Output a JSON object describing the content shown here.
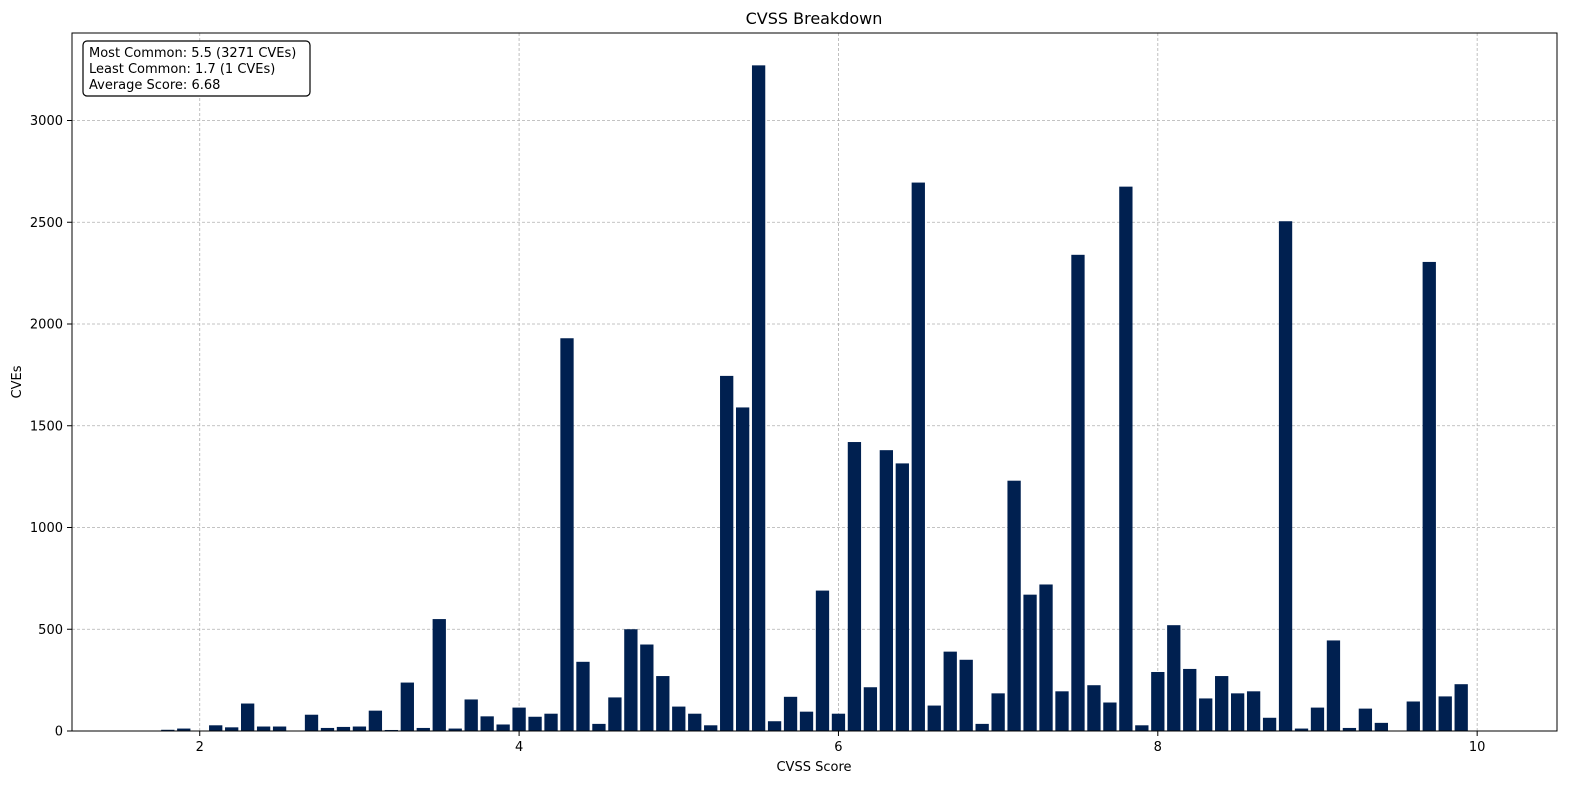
{
  "chart_data": {
    "type": "bar",
    "title": "CVSS Breakdown",
    "xlabel": "CVSS Score",
    "ylabel": "CVEs",
    "xlim": [
      1.2,
      10.5
    ],
    "ylim": [
      0,
      3430
    ],
    "x_ticks": [
      2,
      4,
      6,
      8,
      10
    ],
    "y_ticks": [
      0,
      500,
      1000,
      1500,
      2000,
      2500,
      3000
    ],
    "grid": true,
    "bar_color": "#002050",
    "bin_width": 0.0833,
    "stats": [
      "Most Common: 5.5 (3271 CVEs)",
      "Least Common: 1.7 (1 CVEs)",
      "Average Score: 6.68"
    ],
    "x": [
      1.7,
      1.8,
      1.9,
      2.1,
      2.2,
      2.3,
      2.4,
      2.5,
      2.6,
      2.7,
      2.8,
      2.9,
      3.0,
      3.1,
      3.2,
      3.3,
      3.4,
      3.5,
      3.6,
      3.7,
      3.8,
      3.9,
      4.0,
      4.1,
      4.2,
      4.3,
      4.4,
      4.5,
      4.6,
      4.7,
      4.8,
      4.9,
      5.0,
      5.1,
      5.2,
      5.3,
      5.4,
      5.5,
      5.6,
      5.7,
      5.8,
      5.9,
      6.0,
      6.1,
      6.2,
      6.3,
      6.4,
      6.5,
      6.6,
      6.7,
      6.8,
      6.9,
      7.0,
      7.1,
      7.2,
      7.3,
      7.4,
      7.5,
      7.6,
      7.7,
      7.8,
      7.9,
      8.0,
      8.1,
      8.2,
      8.3,
      8.4,
      8.5,
      8.6,
      8.7,
      8.8,
      8.9,
      9.0,
      9.1,
      9.2,
      9.3,
      9.4,
      9.5,
      9.6,
      9.7,
      9.8,
      9.9,
      10.0
    ],
    "values": [
      1,
      6,
      12,
      28,
      18,
      135,
      22,
      22,
      0,
      80,
      15,
      20,
      22,
      100,
      5,
      238,
      15,
      550,
      12,
      155,
      72,
      32,
      115,
      70,
      85,
      1930,
      340,
      35,
      165,
      500,
      425,
      270,
      120,
      85,
      28,
      1745,
      1590,
      3271,
      48,
      168,
      95,
      690,
      85,
      1420,
      215,
      1380,
      1315,
      2695,
      125,
      390,
      350,
      35,
      185,
      1230,
      670,
      720,
      195,
      2340,
      225,
      140,
      2675,
      28,
      290,
      520,
      305,
      160,
      270,
      185,
      195,
      65,
      2505,
      12,
      115,
      445,
      15,
      110,
      40,
      0,
      145,
      2305,
      170,
      230,
      0
    ]
  }
}
